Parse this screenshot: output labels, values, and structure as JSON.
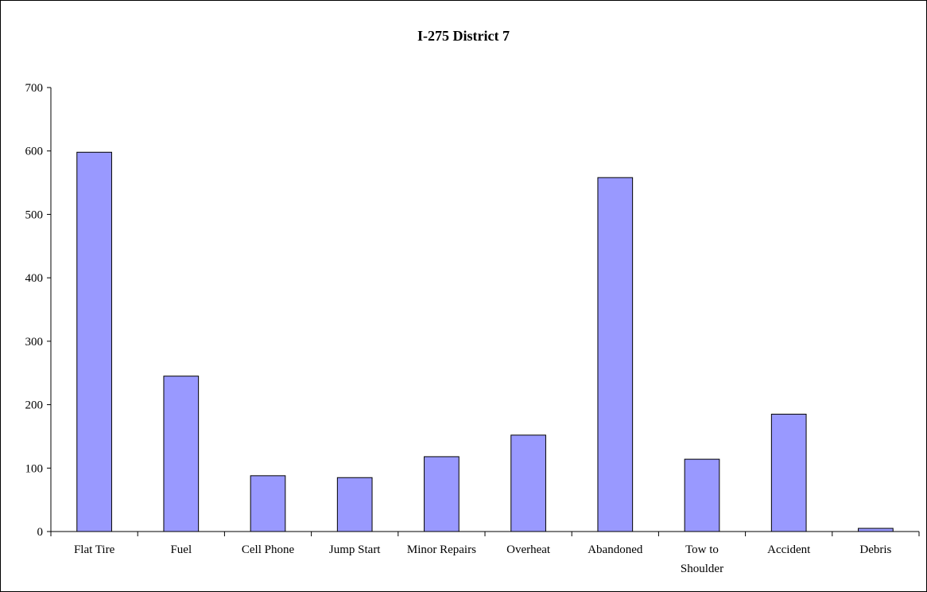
{
  "chart_data": {
    "type": "bar",
    "title": "I-275 District 7",
    "xlabel": "",
    "ylabel": "",
    "categories": [
      "Flat Tire",
      "Fuel",
      "Cell Phone",
      "Jump Start",
      "Minor Repairs",
      "Overheat",
      "Abandoned",
      "Tow to Shoulder",
      "Accident",
      "Debris"
    ],
    "category_lines": [
      [
        "Flat Tire"
      ],
      [
        "Fuel"
      ],
      [
        "Cell Phone"
      ],
      [
        "Jump Start"
      ],
      [
        "Minor Repairs"
      ],
      [
        "Overheat"
      ],
      [
        "Abandoned"
      ],
      [
        "Tow to",
        "Shoulder"
      ],
      [
        "Accident"
      ],
      [
        "Debris"
      ]
    ],
    "values": [
      598,
      245,
      88,
      85,
      118,
      152,
      558,
      114,
      185,
      5
    ],
    "ylim": [
      0,
      700
    ],
    "yticks": [
      0,
      100,
      200,
      300,
      400,
      500,
      600,
      700
    ],
    "grid": false,
    "legend": "none",
    "bar_color": "#9999ff",
    "bar_edge_color": "#000000"
  }
}
